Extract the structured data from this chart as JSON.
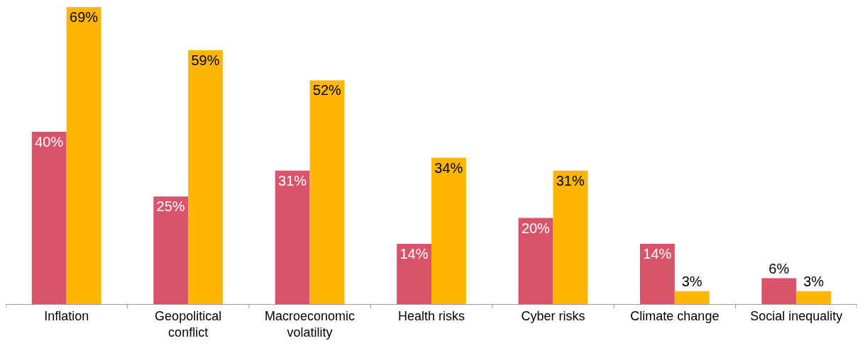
{
  "chart_data": {
    "type": "bar",
    "categories": [
      "Inflation",
      "Geopolitical conflict",
      "Macroeconomic volatility",
      "Health risks",
      "Cyber risks",
      "Climate change",
      "Social inequality"
    ],
    "series": [
      {
        "color": "#d9546b",
        "values": [
          40,
          25,
          31,
          14,
          20,
          14,
          6
        ],
        "value_labels": [
          "40%",
          "25%",
          "31%",
          "14%",
          "20%",
          "14%",
          "6%"
        ]
      },
      {
        "color": "#ffb600",
        "values": [
          69,
          59,
          52,
          34,
          31,
          3,
          3
        ],
        "value_labels": [
          "69%",
          "59%",
          "52%",
          "34%",
          "31%",
          "3%",
          "3%"
        ]
      }
    ]
  }
}
